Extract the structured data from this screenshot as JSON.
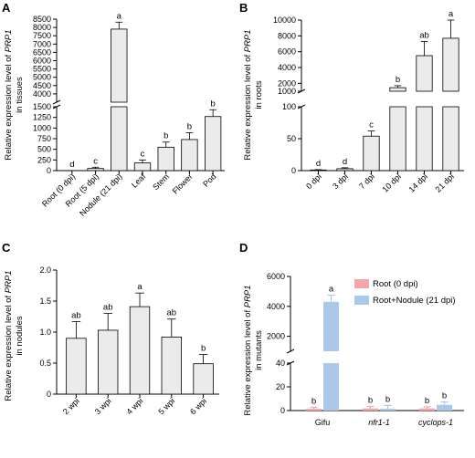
{
  "chart_data": [
    {
      "panel": "A",
      "type": "bar",
      "ylabel_lines": [
        "Relative expression level of PRP1",
        "in tissues"
      ],
      "ylabel_italic_word": "PRP1",
      "categories": [
        "Root (0 dpi)",
        "Root (5 dpi)",
        "Nodule (21 dpi)",
        "Leaf",
        "Stem",
        "Flower",
        "Pod"
      ],
      "values": [
        0,
        50,
        7900,
        180,
        550,
        730,
        1270
      ],
      "errors": [
        0,
        30,
        420,
        70,
        120,
        160,
        160
      ],
      "letters": [
        "d",
        "c",
        "a",
        "c",
        "b",
        "b",
        "b"
      ],
      "axis_break": {
        "lower": [
          0,
          1500
        ],
        "upper": [
          3500,
          8500
        ]
      },
      "lower_ticks": [
        "0",
        "250",
        "500",
        "750",
        "1000",
        "1250",
        "1500"
      ],
      "upper_ticks": [
        "4000",
        "4500",
        "5000",
        "5500",
        "6000",
        "6500",
        "7000",
        "7500",
        "8000",
        "8500"
      ],
      "bar_color": "#ebebeb"
    },
    {
      "panel": "B",
      "type": "bar",
      "ylabel_lines": [
        "Relative expression level of PRP1",
        "in roots"
      ],
      "ylabel_italic_word": "PRP1",
      "categories": [
        "0 dpi",
        "3 dpi",
        "7 dpi",
        "10 dpi",
        "14 dpi",
        "21 dpi"
      ],
      "values": [
        1,
        3,
        54,
        1450,
        5500,
        7700
      ],
      "errors": [
        0.5,
        1.5,
        8,
        250,
        1800,
        2300
      ],
      "letters": [
        "d",
        "d",
        "c",
        "b",
        "ab",
        "a"
      ],
      "axis_break": {
        "lower": [
          0,
          100
        ],
        "upper": [
          1000,
          10000
        ]
      },
      "lower_ticks": [
        "0",
        "50",
        "100"
      ],
      "upper_ticks": [
        "1000",
        "2000",
        "4000",
        "6000",
        "8000",
        "10000"
      ],
      "bar_color": "#ebebeb"
    },
    {
      "panel": "C",
      "type": "bar",
      "ylabel_lines": [
        "Relative expression level of PRP1",
        "in nodules"
      ],
      "ylabel_italic_word": "PRP1",
      "categories": [
        "2 wpi",
        "3 wpi",
        "4 wpi",
        "5 wpi",
        "6 wpi"
      ],
      "values": [
        0.9,
        1.03,
        1.41,
        0.92,
        0.49
      ],
      "errors": [
        0.27,
        0.27,
        0.22,
        0.29,
        0.15
      ],
      "letters": [
        "ab",
        "ab",
        "a",
        "ab",
        "b"
      ],
      "ylim": [
        0,
        2.0
      ],
      "ticks": [
        "0",
        "0.5",
        "1.0",
        "1.5",
        "2.0"
      ],
      "bar_color": "#ebebeb"
    },
    {
      "panel": "D",
      "type": "bar",
      "ylabel_lines": [
        "Relative expression level of PRP1",
        "in mutants"
      ],
      "ylabel_italic_word": "PRP1",
      "categories": [
        "Gifu",
        "nfr1-1",
        "cyclops-1"
      ],
      "categories_italic": [
        false,
        true,
        true
      ],
      "series": [
        {
          "name": "Root (0 dpi)",
          "values": [
            1.5,
            1.8,
            1.8
          ],
          "errors": [
            1.2,
            1.7,
            1.3
          ],
          "letters": [
            "b",
            "b",
            "b"
          ],
          "color": "#f4a6a8"
        },
        {
          "name": "Root+Nodule (21 dpi)",
          "values": [
            4300,
            1.5,
            4.8
          ],
          "errors": [
            450,
            2.8,
            2.5
          ],
          "letters": [
            "a",
            "b",
            "b"
          ],
          "color": "#a9c8ea"
        }
      ],
      "legend_position": "top-right",
      "axis_break": {
        "lower": [
          0,
          40
        ],
        "upper": [
          1000,
          6000
        ]
      },
      "lower_ticks": [
        "0",
        "20",
        "40"
      ],
      "upper_ticks": [
        "2000",
        "4000",
        "6000"
      ]
    }
  ]
}
